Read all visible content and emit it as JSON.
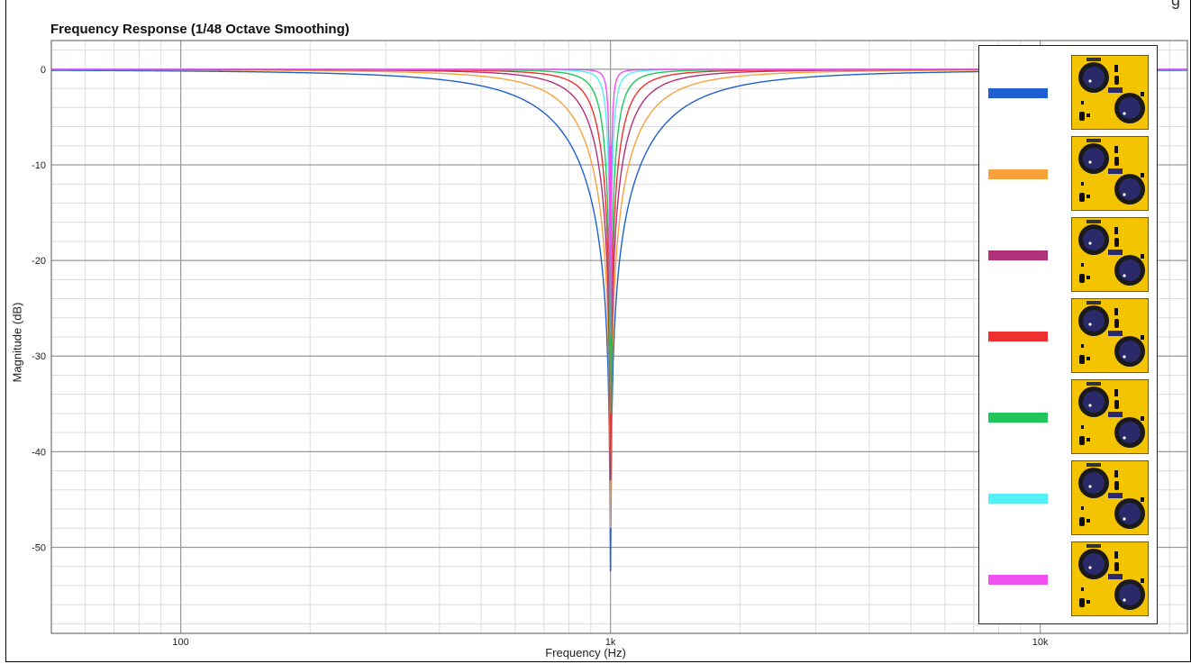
{
  "chart_data": {
    "type": "line",
    "title": "Frequency Response (1/48 Octave Smoothing)",
    "xlabel": "Frequency (Hz)",
    "ylabel": "Magnitude (dB)",
    "xscale": "log",
    "xlim": [
      50,
      22000
    ],
    "ylim": [
      -59,
      3
    ],
    "yticks": [
      0,
      -10,
      -20,
      -30,
      -40,
      -50
    ],
    "xticks": [
      {
        "value": 100,
        "label": "100"
      },
      {
        "value": 1000,
        "label": "1k"
      },
      {
        "value": 10000,
        "label": "10k"
      }
    ],
    "grid": true,
    "legend_position": "right",
    "series": [
      {
        "color": "#1f5fd1",
        "center_hz": 1000,
        "width_octaves": 1.4,
        "min_db": -52.5
      },
      {
        "color": "#f7a23a",
        "center_hz": 1000,
        "width_octaves": 0.85,
        "min_db": -48
      },
      {
        "color": "#b0307a",
        "center_hz": 1000,
        "width_octaves": 0.55,
        "min_db": -43
      },
      {
        "color": "#f03030",
        "center_hz": 1000,
        "width_octaves": 0.36,
        "min_db": -40
      },
      {
        "color": "#22c55a",
        "center_hz": 1000,
        "width_octaves": 0.22,
        "min_db": -36
      },
      {
        "color": "#55f0f5",
        "center_hz": 1000,
        "width_octaves": 0.1,
        "min_db": -22
      },
      {
        "color": "#f050f0",
        "center_hz": 1000,
        "width_octaves": 0.05,
        "min_db": -28
      }
    ]
  },
  "legend": {
    "panel_icon": "eq-knob-panel-icon",
    "panel_color": "#f5c400",
    "knob_color": "#2a2a6a"
  }
}
